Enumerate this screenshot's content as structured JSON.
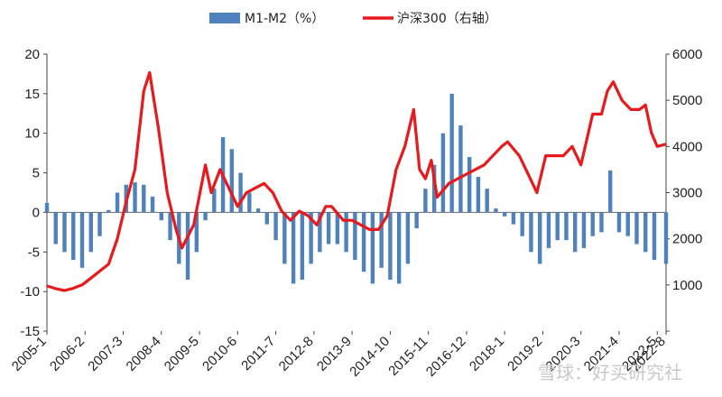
{
  "chart_data": {
    "type": "bar+line",
    "title": "",
    "legend": {
      "position": "top",
      "items": [
        {
          "key": "bar",
          "label": "M1-M2（%）",
          "color": "#4f81bd"
        },
        {
          "key": "line",
          "label": "沪深300（右轴）",
          "color": "#e8191c"
        }
      ]
    },
    "left_axis": {
      "ylim": [
        -15,
        20
      ],
      "ticks": [
        -15,
        -10,
        -5,
        0,
        5,
        10,
        15,
        20
      ],
      "tick_labels": [
        "-15",
        "-10",
        "-5",
        "0",
        "5",
        "10",
        "15",
        "20"
      ]
    },
    "right_axis": {
      "ylim": [
        0,
        6000
      ],
      "ticks": [
        0,
        1000,
        2000,
        3000,
        4000,
        5000,
        6000
      ],
      "tick_labels": [
        "",
        "1000",
        "2000",
        "3000",
        "4000",
        "5000",
        "6000"
      ]
    },
    "x_axis": {
      "start": "2005-1",
      "end": "2022-8",
      "tick_labels": [
        "2005-1",
        "2006-2",
        "2007-3",
        "2008-4",
        "2009-5",
        "2010-6",
        "2011-7",
        "2012-8",
        "2013-9",
        "2014-10",
        "2015-11",
        "2016-12",
        "2018-1",
        "2019-2",
        "2020-3",
        "2021-4",
        "2022-5",
        "2022-8"
      ],
      "tick_dates": [
        "2005-01",
        "2006-02",
        "2007-03",
        "2008-04",
        "2009-05",
        "2010-06",
        "2011-07",
        "2012-08",
        "2013-09",
        "2014-10",
        "2015-11",
        "2016-12",
        "2018-01",
        "2019-02",
        "2020-03",
        "2021-04",
        "2022-05",
        "2022-08"
      ]
    },
    "series": [
      {
        "name": "M1-M2（%）",
        "type": "bar",
        "axis": "left",
        "color": "#4f81bd",
        "x": [
          "2005-01",
          "2005-04",
          "2005-07",
          "2005-10",
          "2006-01",
          "2006-04",
          "2006-07",
          "2006-10",
          "2007-01",
          "2007-04",
          "2007-07",
          "2007-10",
          "2008-01",
          "2008-04",
          "2008-07",
          "2008-10",
          "2009-01",
          "2009-04",
          "2009-07",
          "2009-10",
          "2010-01",
          "2010-04",
          "2010-07",
          "2010-10",
          "2011-01",
          "2011-04",
          "2011-07",
          "2011-10",
          "2012-01",
          "2012-04",
          "2012-07",
          "2012-10",
          "2013-01",
          "2013-04",
          "2013-07",
          "2013-10",
          "2014-01",
          "2014-04",
          "2014-07",
          "2014-10",
          "2015-01",
          "2015-04",
          "2015-07",
          "2015-10",
          "2016-01",
          "2016-04",
          "2016-07",
          "2016-10",
          "2017-01",
          "2017-04",
          "2017-07",
          "2017-10",
          "2018-01",
          "2018-04",
          "2018-07",
          "2018-10",
          "2019-01",
          "2019-04",
          "2019-07",
          "2019-10",
          "2020-01",
          "2020-04",
          "2020-07",
          "2020-10",
          "2021-01",
          "2021-04",
          "2021-07",
          "2021-10",
          "2022-01",
          "2022-04",
          "2022-08"
        ],
        "values": [
          1.2,
          -4.0,
          -5.0,
          -6.0,
          -7.0,
          -5.0,
          -3.0,
          0.3,
          2.5,
          3.5,
          3.8,
          3.5,
          2.0,
          -1.0,
          -3.5,
          -6.5,
          -8.5,
          -5.0,
          -1.0,
          3.0,
          9.5,
          8.0,
          5.0,
          2.5,
          0.5,
          -1.5,
          -3.5,
          -6.5,
          -9.0,
          -8.5,
          -6.5,
          -5.0,
          -4.0,
          -4.0,
          -5.0,
          -6.0,
          -7.5,
          -9.0,
          -7.0,
          -8.5,
          -9.0,
          -6.5,
          -2.0,
          3.0,
          6.0,
          10.0,
          15.0,
          11.0,
          7.0,
          4.5,
          3.0,
          0.5,
          -0.5,
          -1.5,
          -3.0,
          -5.0,
          -6.5,
          -4.5,
          -3.5,
          -3.5,
          -5.0,
          -4.5,
          -3.0,
          -2.5,
          5.3,
          -2.5,
          -3.0,
          -4.0,
          -5.0,
          -6.0,
          -6.5
        ]
      },
      {
        "name": "沪深300（右轴）",
        "type": "line",
        "axis": "right",
        "color": "#e8191c",
        "x": [
          "2005-01",
          "2005-04",
          "2005-07",
          "2005-10",
          "2006-01",
          "2006-04",
          "2006-07",
          "2006-10",
          "2007-01",
          "2007-04",
          "2007-07",
          "2007-10",
          "2007-12",
          "2008-03",
          "2008-06",
          "2008-09",
          "2008-11",
          "2009-03",
          "2009-07",
          "2009-09",
          "2009-12",
          "2010-03",
          "2010-06",
          "2010-09",
          "2010-12",
          "2011-03",
          "2011-06",
          "2011-09",
          "2011-12",
          "2012-03",
          "2012-06",
          "2012-09",
          "2012-12",
          "2013-02",
          "2013-06",
          "2013-09",
          "2013-12",
          "2014-03",
          "2014-06",
          "2014-09",
          "2014-12",
          "2015-03",
          "2015-06",
          "2015-08",
          "2015-10",
          "2015-12",
          "2016-02",
          "2016-06",
          "2016-12",
          "2017-06",
          "2017-12",
          "2018-02",
          "2018-06",
          "2018-09",
          "2018-12",
          "2019-03",
          "2019-06",
          "2019-09",
          "2019-12",
          "2020-03",
          "2020-07",
          "2020-10",
          "2020-12",
          "2021-02",
          "2021-05",
          "2021-08",
          "2021-11",
          "2022-01",
          "2022-03",
          "2022-05",
          "2022-08"
        ],
        "values": [
          980,
          920,
          880,
          930,
          1000,
          1150,
          1300,
          1450,
          2000,
          2800,
          3500,
          5200,
          5600,
          4400,
          3000,
          2200,
          1800,
          2300,
          3600,
          3000,
          3500,
          3100,
          2700,
          3000,
          3100,
          3200,
          3000,
          2600,
          2400,
          2600,
          2500,
          2300,
          2700,
          2700,
          2400,
          2400,
          2300,
          2200,
          2200,
          2500,
          3500,
          4000,
          4800,
          3500,
          3300,
          3700,
          2900,
          3200,
          3400,
          3600,
          4000,
          4100,
          3800,
          3400,
          3000,
          3800,
          3800,
          3800,
          4000,
          3600,
          4700,
          4700,
          5200,
          5400,
          5000,
          4800,
          4800,
          4900,
          4300,
          4000,
          4050
        ]
      }
    ]
  },
  "watermark": {
    "text": "雪球：好买研究社"
  }
}
